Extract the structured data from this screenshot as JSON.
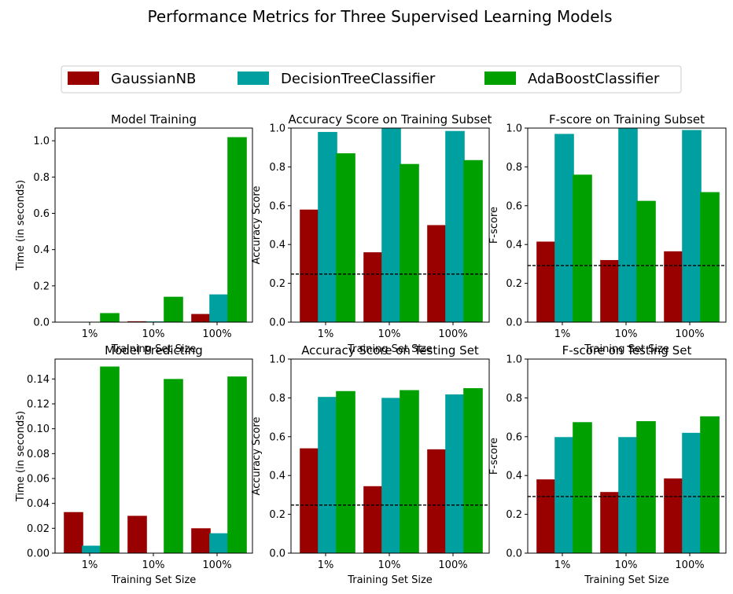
{
  "figure": {
    "suptitle": "Performance Metrics for Three Supervised Learning Models",
    "legend": [
      "GaussianNB",
      "DecisionTreeClassifier",
      "AdaBoostClassifier"
    ],
    "colors": {
      "GaussianNB": "#990000",
      "DecisionTreeClassifier": "#00A0A0",
      "AdaBoostClassifier": "#00A000"
    }
  },
  "chart_data": [
    {
      "type": "bar",
      "title": "Model Training",
      "xlabel": "Training Set Size",
      "ylabel": "Time (in seconds)",
      "categories": [
        "1%",
        "10%",
        "100%"
      ],
      "ylim": [
        0,
        1.07
      ],
      "yticks": [
        "0.0",
        "0.2",
        "0.4",
        "0.6",
        "0.8",
        "1.0"
      ],
      "ytick_values": [
        0,
        0.2,
        0.4,
        0.6,
        0.8,
        1.0
      ],
      "series": [
        {
          "name": "GaussianNB",
          "values": [
            0.001,
            0.005,
            0.045
          ]
        },
        {
          "name": "DecisionTreeClassifier",
          "values": [
            0.002,
            0.004,
            0.153
          ]
        },
        {
          "name": "AdaBoostClassifier",
          "values": [
            0.05,
            0.14,
            1.02
          ]
        }
      ]
    },
    {
      "type": "bar",
      "title": "Accuracy Score on Training Subset",
      "xlabel": "Training Set Size",
      "ylabel": "Accuracy Score",
      "categories": [
        "1%",
        "10%",
        "100%"
      ],
      "ylim": [
        0,
        1.0
      ],
      "yticks": [
        "0.0",
        "0.2",
        "0.4",
        "0.6",
        "0.8",
        "1.0"
      ],
      "ytick_values": [
        0,
        0.2,
        0.4,
        0.6,
        0.8,
        1.0
      ],
      "hline": 0.2478,
      "series": [
        {
          "name": "GaussianNB",
          "values": [
            0.58,
            0.36,
            0.5
          ]
        },
        {
          "name": "DecisionTreeClassifier",
          "values": [
            0.98,
            1.0,
            0.985
          ]
        },
        {
          "name": "AdaBoostClassifier",
          "values": [
            0.87,
            0.815,
            0.835
          ]
        }
      ]
    },
    {
      "type": "bar",
      "title": "F-score on Training Subset",
      "xlabel": "Training Set Size",
      "ylabel": "F-score",
      "categories": [
        "1%",
        "10%",
        "100%"
      ],
      "ylim": [
        0,
        1.0
      ],
      "yticks": [
        "0.0",
        "0.2",
        "0.4",
        "0.6",
        "0.8",
        "1.0"
      ],
      "ytick_values": [
        0,
        0.2,
        0.4,
        0.6,
        0.8,
        1.0
      ],
      "hline": 0.2917,
      "series": [
        {
          "name": "GaussianNB",
          "values": [
            0.415,
            0.32,
            0.365
          ]
        },
        {
          "name": "DecisionTreeClassifier",
          "values": [
            0.97,
            1.0,
            0.99
          ]
        },
        {
          "name": "AdaBoostClassifier",
          "values": [
            0.76,
            0.625,
            0.67
          ]
        }
      ]
    },
    {
      "type": "bar",
      "title": "Model Predicting",
      "xlabel": "Training Set Size",
      "ylabel": "Time (in seconds)",
      "categories": [
        "1%",
        "10%",
        "100%"
      ],
      "ylim": [
        0,
        0.156
      ],
      "yticks": [
        "0.00",
        "0.02",
        "0.04",
        "0.06",
        "0.08",
        "0.10",
        "0.12",
        "0.14"
      ],
      "ytick_values": [
        0,
        0.02,
        0.04,
        0.06,
        0.08,
        0.1,
        0.12,
        0.14
      ],
      "series": [
        {
          "name": "GaussianNB",
          "values": [
            0.033,
            0.03,
            0.02
          ]
        },
        {
          "name": "DecisionTreeClassifier",
          "values": [
            0.006,
            0.0,
            0.016
          ]
        },
        {
          "name": "AdaBoostClassifier",
          "values": [
            0.15,
            0.14,
            0.142
          ]
        }
      ]
    },
    {
      "type": "bar",
      "title": "Accuracy Score on Testing Set",
      "xlabel": "Training Set Size",
      "ylabel": "Accuracy Score",
      "categories": [
        "1%",
        "10%",
        "100%"
      ],
      "ylim": [
        0,
        1.0
      ],
      "yticks": [
        "0.0",
        "0.2",
        "0.4",
        "0.6",
        "0.8",
        "1.0"
      ],
      "ytick_values": [
        0,
        0.2,
        0.4,
        0.6,
        0.8,
        1.0
      ],
      "hline": 0.2478,
      "series": [
        {
          "name": "GaussianNB",
          "values": [
            0.54,
            0.345,
            0.535
          ]
        },
        {
          "name": "DecisionTreeClassifier",
          "values": [
            0.805,
            0.8,
            0.818
          ]
        },
        {
          "name": "AdaBoostClassifier",
          "values": [
            0.835,
            0.84,
            0.85
          ]
        }
      ]
    },
    {
      "type": "bar",
      "title": "F-score on Testing Set",
      "xlabel": "Training Set Size",
      "ylabel": "F-score",
      "categories": [
        "1%",
        "10%",
        "100%"
      ],
      "ylim": [
        0,
        1.0
      ],
      "yticks": [
        "0.0",
        "0.2",
        "0.4",
        "0.6",
        "0.8",
        "1.0"
      ],
      "ytick_values": [
        0,
        0.2,
        0.4,
        0.6,
        0.8,
        1.0
      ],
      "hline": 0.2917,
      "series": [
        {
          "name": "GaussianNB",
          "values": [
            0.38,
            0.315,
            0.385
          ]
        },
        {
          "name": "DecisionTreeClassifier",
          "values": [
            0.598,
            0.598,
            0.62
          ]
        },
        {
          "name": "AdaBoostClassifier",
          "values": [
            0.675,
            0.68,
            0.705
          ]
        }
      ]
    }
  ]
}
